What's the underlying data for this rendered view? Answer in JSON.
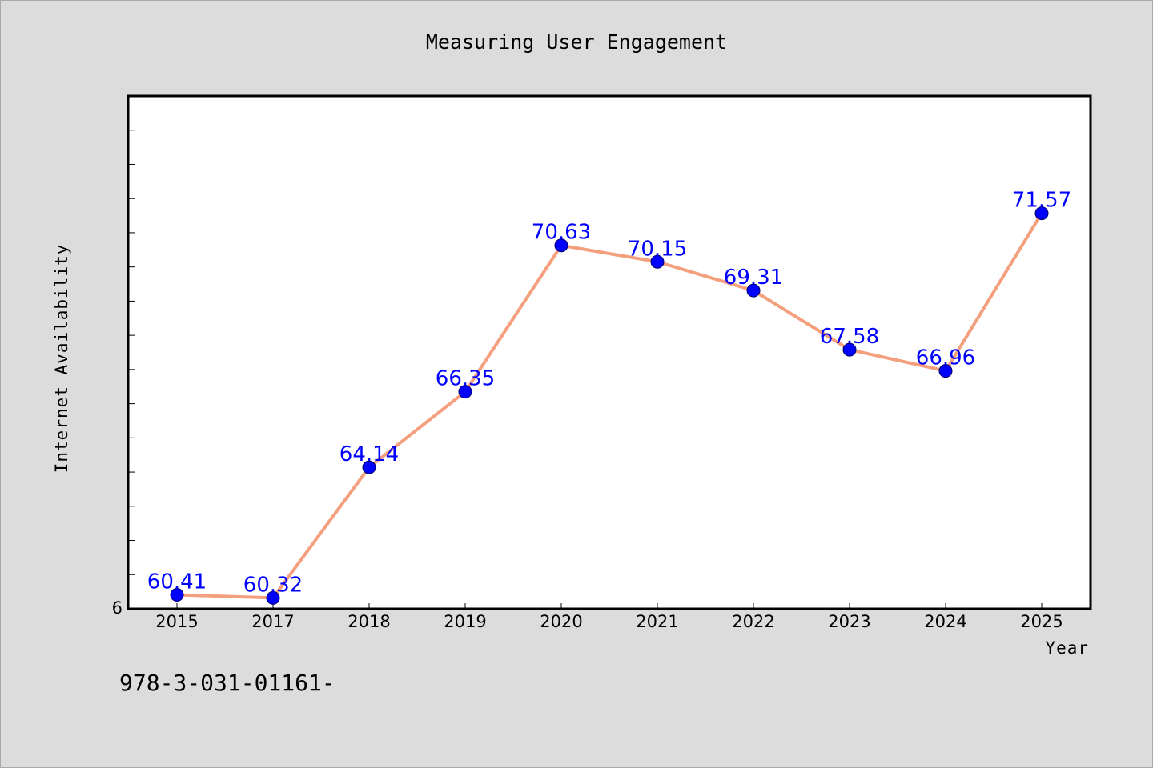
{
  "chart_data": {
    "type": "line",
    "title": "Measuring User Engagement",
    "xlabel": "Year",
    "ylabel": "Internet Availability",
    "categories": [
      "2015",
      "2017",
      "2018",
      "2019",
      "2020",
      "2021",
      "2022",
      "2023",
      "2024",
      "2025"
    ],
    "series": [
      {
        "values": [
          60.41,
          60.32,
          64.14,
          66.35,
          70.63,
          70.15,
          69.31,
          67.58,
          66.96,
          71.57
        ],
        "data_labels": [
          "60.41",
          "60.32",
          "64.14",
          "66.35",
          "70.63",
          "70.15",
          "69.31",
          "67.58",
          "66.96",
          "71.57"
        ],
        "line_color": "#f4a07f",
        "marker_color": "#0000ff",
        "label_color": "#0000ff"
      }
    ],
    "ylim": [
      60,
      75
    ],
    "y_tick_labels": [
      "6"
    ],
    "grid": false,
    "legend": "none"
  },
  "footer": {
    "text": "978-3-031-01161-"
  },
  "colors": {
    "background": "#dcdcdc",
    "plot_background": "#ffffff",
    "axes": "#000000"
  }
}
